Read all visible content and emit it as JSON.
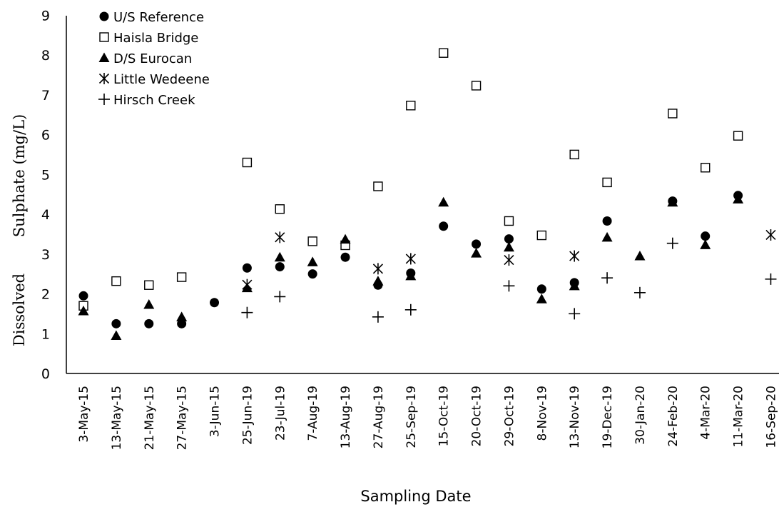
{
  "chart_data": {
    "type": "scatter",
    "title": "",
    "xlabel": "Sampling Date",
    "ylabel_parts": [
      "Dissolved",
      "Sulphate (mg/L)"
    ],
    "ylim": [
      0,
      9
    ],
    "yticks": [
      "0",
      "1",
      "2",
      "3",
      "4",
      "5",
      "6",
      "7",
      "8",
      "9"
    ],
    "grid": false,
    "legend_position": "top-left",
    "categories": [
      "3-May-15",
      "13-May-15",
      "21-May-15",
      "27-May-15",
      "3-Jun-15",
      "25-Jun-19",
      "23-Jul-19",
      "7-Aug-19",
      "13-Aug-19",
      "27-Aug-19",
      "25-Sep-19",
      "15-Oct-19",
      "20-Oct-19",
      "29-Oct-19",
      "8-Nov-19",
      "13-Nov-19",
      "19-Dec-19",
      "30-Jan-20",
      "24-Feb-20",
      "4-Mar-20",
      "11-Mar-20",
      "16-Sep-20"
    ],
    "series": [
      {
        "name": "U/S Reference",
        "marker": "circle",
        "values": [
          1.95,
          1.25,
          1.25,
          1.25,
          1.78,
          2.65,
          2.68,
          2.5,
          2.92,
          2.22,
          2.52,
          3.7,
          3.25,
          3.38,
          2.12,
          2.28,
          3.83,
          null,
          4.33,
          3.45,
          4.47,
          null
        ]
      },
      {
        "name": "Haisla Bridge",
        "marker": "square",
        "values": [
          1.7,
          2.32,
          2.22,
          2.42,
          null,
          5.3,
          4.13,
          3.32,
          3.22,
          4.7,
          6.73,
          8.05,
          7.23,
          3.83,
          3.47,
          5.5,
          4.8,
          null,
          6.53,
          5.17,
          5.97,
          null
        ]
      },
      {
        "name": "D/S Eurocan",
        "marker": "triangle",
        "values": [
          1.57,
          0.95,
          1.73,
          1.42,
          null,
          2.15,
          2.92,
          2.8,
          3.37,
          2.32,
          2.45,
          4.3,
          3.02,
          3.17,
          1.87,
          2.2,
          3.42,
          2.95,
          4.3,
          3.23,
          4.38,
          null
        ]
      },
      {
        "name": "Little Wedeene",
        "marker": "asterisk",
        "values": [
          null,
          null,
          null,
          null,
          null,
          2.23,
          3.42,
          null,
          null,
          2.63,
          2.88,
          null,
          null,
          2.85,
          null,
          2.95,
          null,
          null,
          null,
          null,
          null,
          3.48
        ]
      },
      {
        "name": "Hirsch Creek",
        "marker": "plus",
        "values": [
          null,
          null,
          null,
          null,
          null,
          1.53,
          1.93,
          null,
          null,
          1.42,
          1.6,
          null,
          null,
          2.2,
          null,
          1.5,
          2.4,
          2.03,
          3.27,
          null,
          null,
          2.37
        ]
      }
    ]
  }
}
